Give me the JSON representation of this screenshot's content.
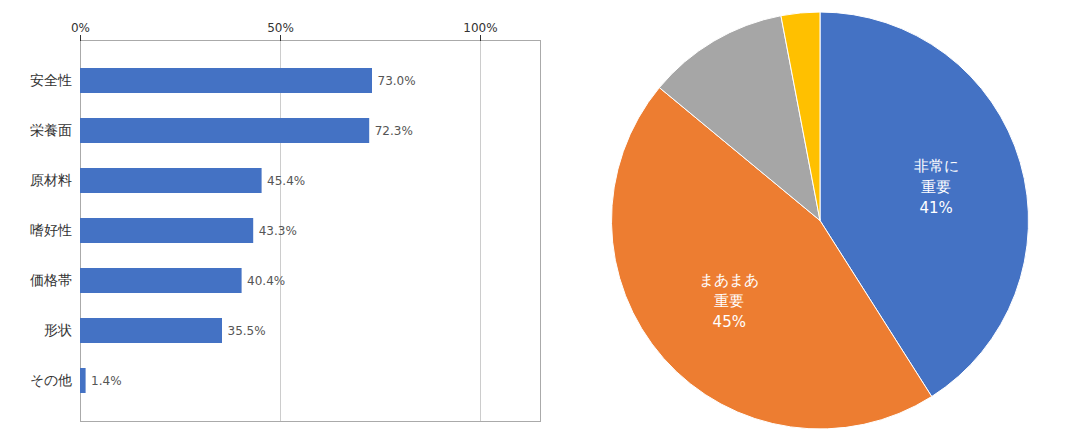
{
  "chart_data": [
    {
      "type": "bar",
      "orientation": "horizontal",
      "categories": [
        "安全性",
        "栄養面",
        "原材料",
        "嗜好性",
        "価格帯",
        "形状",
        "その他"
      ],
      "values": [
        73.0,
        72.3,
        45.4,
        43.3,
        40.4,
        35.5,
        1.4
      ],
      "value_labels": [
        "73.0%",
        "72.3%",
        "45.4%",
        "43.3%",
        "40.4%",
        "35.5%",
        "1.4%"
      ],
      "data_labels": true,
      "color": "#4472C4",
      "xlim": [
        0,
        115
      ],
      "xticks": [
        {
          "value": 0,
          "label": "0%"
        },
        {
          "value": 50,
          "label": "50%"
        },
        {
          "value": 100,
          "label": "100%"
        }
      ],
      "grid": true
    },
    {
      "type": "pie",
      "categories": [
        "非常に\n重要\n41%",
        "まあまあ\n重要\n45%",
        null,
        null
      ],
      "values": [
        41,
        45,
        11,
        3
      ],
      "colors": [
        "#4472C4",
        "#ED7D31",
        "#A6A6A6",
        "#FFC000"
      ]
    }
  ]
}
